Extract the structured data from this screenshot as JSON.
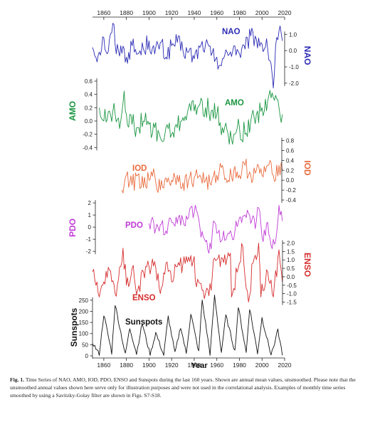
{
  "caption": {
    "label": "Fig. 1.",
    "text": "Time Series of NAO, AMO, IOD, PDO, ENSO and Sunspots during the last 160 years. Shown are annual mean values, unsmoothed. Please note that the unsmoothed annual values shown here serve only for illustration purposes and were not used in the correlational analysis. Examples of monthly time series smoothed by using a Savitzky-Golay filter are shown in Figs. S7-S18."
  },
  "chart_data": {
    "type": "line",
    "xlabel": "Year",
    "x_ticks": [
      1860,
      1880,
      1900,
      1920,
      1940,
      1960,
      1980,
      2000,
      2020
    ],
    "xlim": [
      1850,
      2020
    ],
    "panels": [
      {
        "name": "NAO",
        "label": "NAO",
        "inside_label": "NAO",
        "color": "#2b2bb5",
        "axis_side": "right",
        "ylim": [
          -2.4,
          1.8
        ],
        "ticks": [
          "1.0",
          "0.0",
          "-1.0",
          "-2.0"
        ],
        "tick_values": [
          1.0,
          0.0,
          -1.0,
          -2.0
        ],
        "x_start": 1850,
        "x_end": 2018,
        "anchors": [
          [
            1850,
            0.2
          ],
          [
            1855,
            -0.3
          ],
          [
            1860,
            0.8
          ],
          [
            1863,
            -0.2
          ],
          [
            1867,
            1.1
          ],
          [
            1869,
            1.6
          ],
          [
            1871,
            -0.2
          ],
          [
            1875,
            0.3
          ],
          [
            1880,
            -0.4
          ],
          [
            1885,
            0.3
          ],
          [
            1890,
            -0.2
          ],
          [
            1895,
            0.1
          ],
          [
            1900,
            0.6
          ],
          [
            1905,
            -0.2
          ],
          [
            1910,
            0.5
          ],
          [
            1915,
            -0.4
          ],
          [
            1920,
            0.3
          ],
          [
            1925,
            0.5
          ],
          [
            1930,
            0.0
          ],
          [
            1935,
            -0.1
          ],
          [
            1940,
            -0.5
          ],
          [
            1945,
            0.2
          ],
          [
            1950,
            0.4
          ],
          [
            1955,
            -0.3
          ],
          [
            1960,
            -0.4
          ],
          [
            1963,
            -0.9
          ],
          [
            1965,
            -0.5
          ],
          [
            1970,
            -0.3
          ],
          [
            1975,
            0.3
          ],
          [
            1980,
            -0.2
          ],
          [
            1985,
            0.1
          ],
          [
            1990,
            0.9
          ],
          [
            1995,
            0.7
          ],
          [
            2000,
            0.4
          ],
          [
            2005,
            0.1
          ],
          [
            2008,
            -0.8
          ],
          [
            2010,
            -2.3
          ],
          [
            2012,
            0.3
          ],
          [
            2015,
            1.2
          ],
          [
            2018,
            0.6
          ]
        ]
      },
      {
        "name": "AMO",
        "label": "AMO",
        "inside_label": "AMO",
        "color": "#1a9641",
        "axis_side": "left",
        "ylim": [
          -0.45,
          0.75
        ],
        "ticks": [
          "0.6",
          "0.4",
          "0.2",
          "0.0",
          "-0.2",
          "-0.4"
        ],
        "tick_values": [
          0.6,
          0.4,
          0.2,
          0.0,
          -0.2,
          -0.4
        ],
        "x_start": 1856,
        "x_end": 2018,
        "anchors": [
          [
            1856,
            0.2
          ],
          [
            1860,
            0.0
          ],
          [
            1865,
            0.15
          ],
          [
            1870,
            0.1
          ],
          [
            1875,
            0.0
          ],
          [
            1878,
            0.45
          ],
          [
            1880,
            0.1
          ],
          [
            1885,
            -0.05
          ],
          [
            1890,
            -0.1
          ],
          [
            1895,
            0.0
          ],
          [
            1900,
            -0.05
          ],
          [
            1903,
            -0.2
          ],
          [
            1905,
            -0.1
          ],
          [
            1910,
            -0.25
          ],
          [
            1913,
            -0.3
          ],
          [
            1915,
            -0.1
          ],
          [
            1920,
            -0.2
          ],
          [
            1925,
            -0.1
          ],
          [
            1930,
            0.05
          ],
          [
            1935,
            0.2
          ],
          [
            1940,
            0.15
          ],
          [
            1945,
            0.25
          ],
          [
            1950,
            0.2
          ],
          [
            1955,
            0.15
          ],
          [
            1960,
            0.1
          ],
          [
            1965,
            -0.1
          ],
          [
            1970,
            -0.2
          ],
          [
            1974,
            -0.35
          ],
          [
            1975,
            -0.2
          ],
          [
            1980,
            -0.1
          ],
          [
            1985,
            -0.2
          ],
          [
            1990,
            0.0
          ],
          [
            1995,
            0.1
          ],
          [
            2000,
            0.2
          ],
          [
            2005,
            0.3
          ],
          [
            2010,
            0.35
          ],
          [
            2015,
            0.2
          ],
          [
            2018,
            0.1
          ]
        ]
      },
      {
        "name": "IOD",
        "label": "IOD",
        "inside_label": "IOD",
        "color": "#e86a3c",
        "axis_side": "right",
        "ylim": [
          -0.5,
          0.85
        ],
        "ticks": [
          "0.8",
          "0.6",
          "0.4",
          "0.2",
          "0.0",
          "-0.2",
          "-0.4"
        ],
        "tick_values": [
          0.8,
          0.6,
          0.4,
          0.2,
          0.0,
          -0.2,
          -0.4
        ],
        "x_start": 1876,
        "x_end": 2018,
        "anchors": [
          [
            1876,
            -0.2
          ],
          [
            1880,
            0.1
          ],
          [
            1885,
            -0.1
          ],
          [
            1890,
            0.1
          ],
          [
            1895,
            -0.15
          ],
          [
            1900,
            0.0
          ],
          [
            1905,
            0.1
          ],
          [
            1910,
            -0.2
          ],
          [
            1915,
            0.05
          ],
          [
            1920,
            0.0
          ],
          [
            1925,
            0.1
          ],
          [
            1930,
            -0.05
          ],
          [
            1935,
            0.0
          ],
          [
            1940,
            0.05
          ],
          [
            1945,
            0.1
          ],
          [
            1950,
            0.0
          ],
          [
            1955,
            -0.1
          ],
          [
            1960,
            0.1
          ],
          [
            1965,
            0.3
          ],
          [
            1970,
            0.0
          ],
          [
            1975,
            0.2
          ],
          [
            1980,
            0.1
          ],
          [
            1985,
            0.3
          ],
          [
            1990,
            0.1
          ],
          [
            1995,
            0.2
          ],
          [
            2000,
            0.1
          ],
          [
            2005,
            0.3
          ],
          [
            2010,
            0.1
          ],
          [
            2015,
            0.3
          ],
          [
            2018,
            0.2
          ]
        ]
      },
      {
        "name": "PDO",
        "label": "PDO",
        "inside_label": "PDO",
        "color": "#c03bd6",
        "axis_side": "left",
        "ylim": [
          -2.4,
          2.3
        ],
        "ticks": [
          "2",
          "1",
          "0",
          "-1",
          "-2"
        ],
        "tick_values": [
          2,
          1,
          0,
          -1,
          -2
        ],
        "x_start": 1900,
        "x_end": 2018,
        "anchors": [
          [
            1900,
            0.3
          ],
          [
            1903,
            0.8
          ],
          [
            1905,
            -0.5
          ],
          [
            1910,
            0.2
          ],
          [
            1915,
            -0.3
          ],
          [
            1920,
            0.4
          ],
          [
            1925,
            0.3
          ],
          [
            1930,
            0.6
          ],
          [
            1935,
            0.8
          ],
          [
            1936,
            1.5
          ],
          [
            1940,
            1.2
          ],
          [
            1941,
            1.8
          ],
          [
            1945,
            0.0
          ],
          [
            1948,
            -0.8
          ],
          [
            1950,
            -1.2
          ],
          [
            1955,
            -1.8
          ],
          [
            1957,
            0.5
          ],
          [
            1960,
            -0.5
          ],
          [
            1965,
            -1.0
          ],
          [
            1970,
            -0.5
          ],
          [
            1975,
            -1.0
          ],
          [
            1977,
            0.5
          ],
          [
            1980,
            0.8
          ],
          [
            1985,
            1.0
          ],
          [
            1987,
            1.4
          ],
          [
            1990,
            0.3
          ],
          [
            1995,
            0.5
          ],
          [
            1997,
            1.6
          ],
          [
            2000,
            -0.8
          ],
          [
            2005,
            0.4
          ],
          [
            2008,
            -1.5
          ],
          [
            2010,
            -1.0
          ],
          [
            2012,
            -1.2
          ],
          [
            2014,
            0.5
          ],
          [
            2015,
            1.8
          ],
          [
            2016,
            1.0
          ],
          [
            2018,
            0.5
          ]
        ]
      },
      {
        "name": "ENSO",
        "label": "ENSO",
        "inside_label": "ENSO",
        "color": "#d62c2c",
        "axis_side": "right",
        "ylim": [
          -1.65,
          2.15
        ],
        "ticks": [
          "2.0",
          "1.5",
          "1.0",
          "0.5",
          "0.0",
          "-0.5",
          "-1.0",
          "-1.5"
        ],
        "tick_values": [
          2.0,
          1.5,
          1.0,
          0.5,
          0.0,
          -0.5,
          -1.0,
          -1.5
        ],
        "x_start": 1850,
        "x_end": 2018,
        "anchors": [
          [
            1850,
            0.3
          ],
          [
            1853,
            -0.5
          ],
          [
            1856,
            -1.2
          ],
          [
            1860,
            -0.3
          ],
          [
            1865,
            0.4
          ],
          [
            1870,
            -1.0
          ],
          [
            1875,
            0.6
          ],
          [
            1877,
            1.7
          ],
          [
            1880,
            -0.5
          ],
          [
            1885,
            0.5
          ],
          [
            1890,
            -0.8
          ],
          [
            1895,
            0.3
          ],
          [
            1900,
            0.6
          ],
          [
            1905,
            0.9
          ],
          [
            1910,
            -1.0
          ],
          [
            1915,
            0.8
          ],
          [
            1920,
            -0.3
          ],
          [
            1925,
            0.6
          ],
          [
            1930,
            0.8
          ],
          [
            1940,
            1.2
          ],
          [
            1942,
            -0.6
          ],
          [
            1950,
            -1.0
          ],
          [
            1955,
            -0.8
          ],
          [
            1957,
            1.0
          ],
          [
            1965,
            1.1
          ],
          [
            1972,
            1.4
          ],
          [
            1973,
            -1.2
          ],
          [
            1983,
            1.8
          ],
          [
            1988,
            -1.5
          ],
          [
            1992,
            0.8
          ],
          [
            1997,
            2.0
          ],
          [
            1999,
            -1.2
          ],
          [
            2005,
            0.3
          ],
          [
            2010,
            -1.2
          ],
          [
            2015,
            1.6
          ],
          [
            2018,
            -0.3
          ]
        ]
      },
      {
        "name": "Sunspots",
        "label": "Sunspots",
        "inside_label": "Sunspots",
        "color": "#111111",
        "axis_side": "left",
        "ylim": [
          0,
          275
        ],
        "ticks": [
          "250",
          "200",
          "150",
          "100",
          "50",
          "0"
        ],
        "tick_values": [
          250,
          200,
          150,
          100,
          50,
          0
        ],
        "x_start": 1850,
        "x_end": 2018,
        "cycles": [
          [
            1850,
            60
          ],
          [
            1856,
            6
          ],
          [
            1860,
            186
          ],
          [
            1867,
            14
          ],
          [
            1870,
            232
          ],
          [
            1879,
            5
          ],
          [
            1883,
            124
          ],
          [
            1889,
            10
          ],
          [
            1894,
            146
          ],
          [
            1901,
            4
          ],
          [
            1906,
            104
          ],
          [
            1913,
            2
          ],
          [
            1917,
            176
          ],
          [
            1923,
            10
          ],
          [
            1928,
            131
          ],
          [
            1933,
            9
          ],
          [
            1937,
            190
          ],
          [
            1944,
            16
          ],
          [
            1947,
            252
          ],
          [
            1954,
            7
          ],
          [
            1958,
            270
          ],
          [
            1964,
            15
          ],
          [
            1968,
            180
          ],
          [
            1976,
            20
          ],
          [
            1979,
            220
          ],
          [
            1986,
            14
          ],
          [
            1989,
            215
          ],
          [
            1996,
            13
          ],
          [
            2000,
            170
          ],
          [
            2008,
            4
          ],
          [
            2014,
            113
          ],
          [
            2018,
            10
          ]
        ]
      }
    ]
  }
}
